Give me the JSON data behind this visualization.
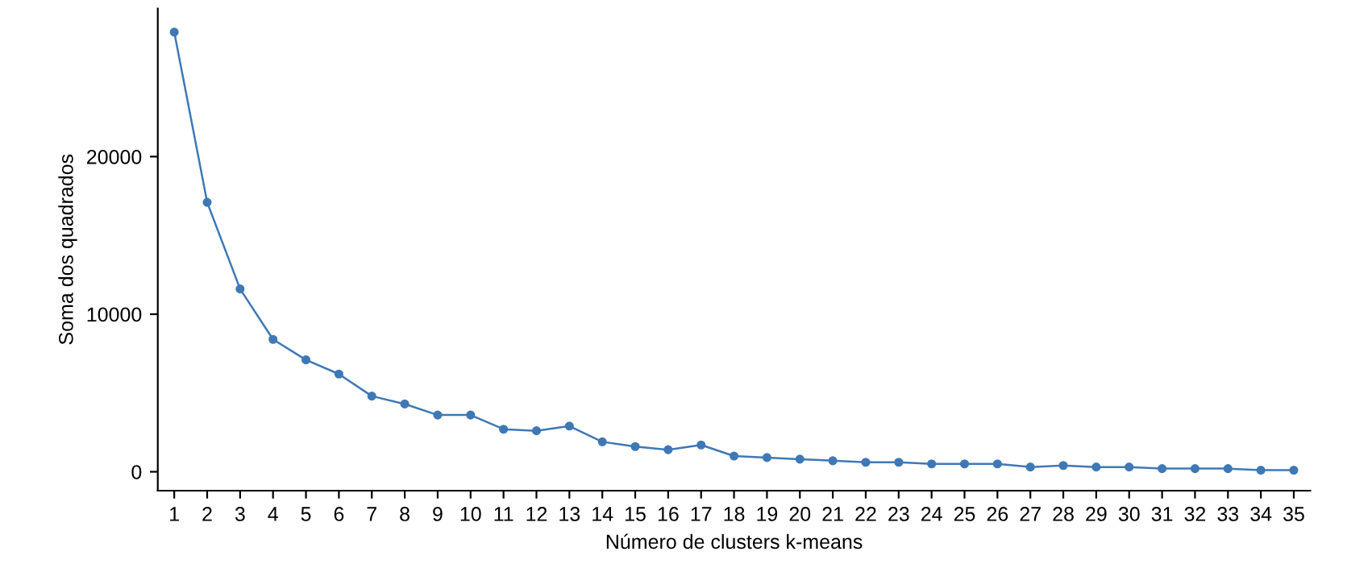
{
  "chart_data": {
    "type": "line",
    "xlabel": "Número de clusters k-means",
    "ylabel": "Soma dos quadrados",
    "categories": [
      "1",
      "2",
      "3",
      "4",
      "5",
      "6",
      "7",
      "8",
      "9",
      "10",
      "11",
      "12",
      "13",
      "14",
      "15",
      "16",
      "17",
      "18",
      "19",
      "20",
      "21",
      "22",
      "23",
      "24",
      "25",
      "26",
      "27",
      "28",
      "29",
      "30",
      "31",
      "32",
      "33",
      "34",
      "35"
    ],
    "series": [
      {
        "color": "#3f78b5",
        "values": [
          27900,
          17100,
          11600,
          8400,
          7100,
          6200,
          4800,
          4300,
          3600,
          3600,
          2700,
          2600,
          2900,
          1900,
          1600,
          1400,
          1700,
          1000,
          900,
          800,
          700,
          600,
          600,
          500,
          500,
          500,
          300,
          400,
          300,
          300,
          200,
          200,
          200,
          100,
          100
        ]
      }
    ],
    "ylim": [
      -1200,
      29400
    ],
    "yticks": [
      0,
      10000,
      20000
    ],
    "grid": false,
    "marker": "circle",
    "line_style": "solid"
  }
}
